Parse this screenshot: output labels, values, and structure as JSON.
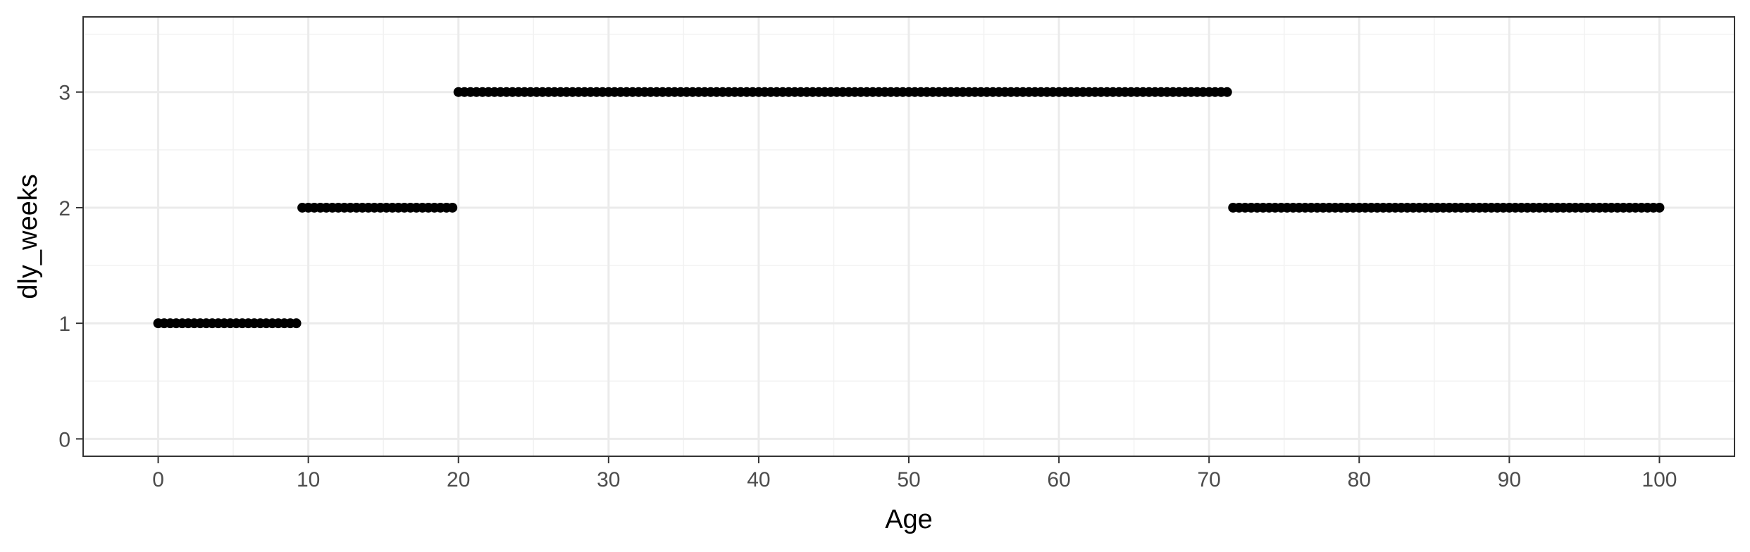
{
  "chart_data": {
    "type": "scatter",
    "title": "",
    "xlabel": "Age",
    "ylabel": "dly_weeks",
    "xlim": [
      -5,
      105
    ],
    "ylim": [
      -0.15,
      3.65
    ],
    "x_ticks": [
      0,
      10,
      20,
      30,
      40,
      50,
      60,
      70,
      80,
      90,
      100
    ],
    "y_ticks": [
      0,
      1,
      2,
      3
    ],
    "x_tick_labels": [
      "0",
      "10",
      "20",
      "30",
      "40",
      "50",
      "60",
      "70",
      "80",
      "90",
      "100"
    ],
    "y_tick_labels": [
      "0",
      "1",
      "2",
      "3"
    ],
    "grid": true,
    "legend": "none",
    "point_color": "#000000",
    "segments": [
      {
        "x_start": 0,
        "x_end": 9.2,
        "step": 0.4,
        "y": 1
      },
      {
        "x_start": 9.6,
        "x_end": 19.6,
        "step": 0.4,
        "y": 2
      },
      {
        "x_start": 20,
        "x_end": 71.2,
        "step": 0.4,
        "y": 3
      },
      {
        "x_start": 71.6,
        "x_end": 100,
        "step": 0.4,
        "y": 2
      }
    ]
  }
}
